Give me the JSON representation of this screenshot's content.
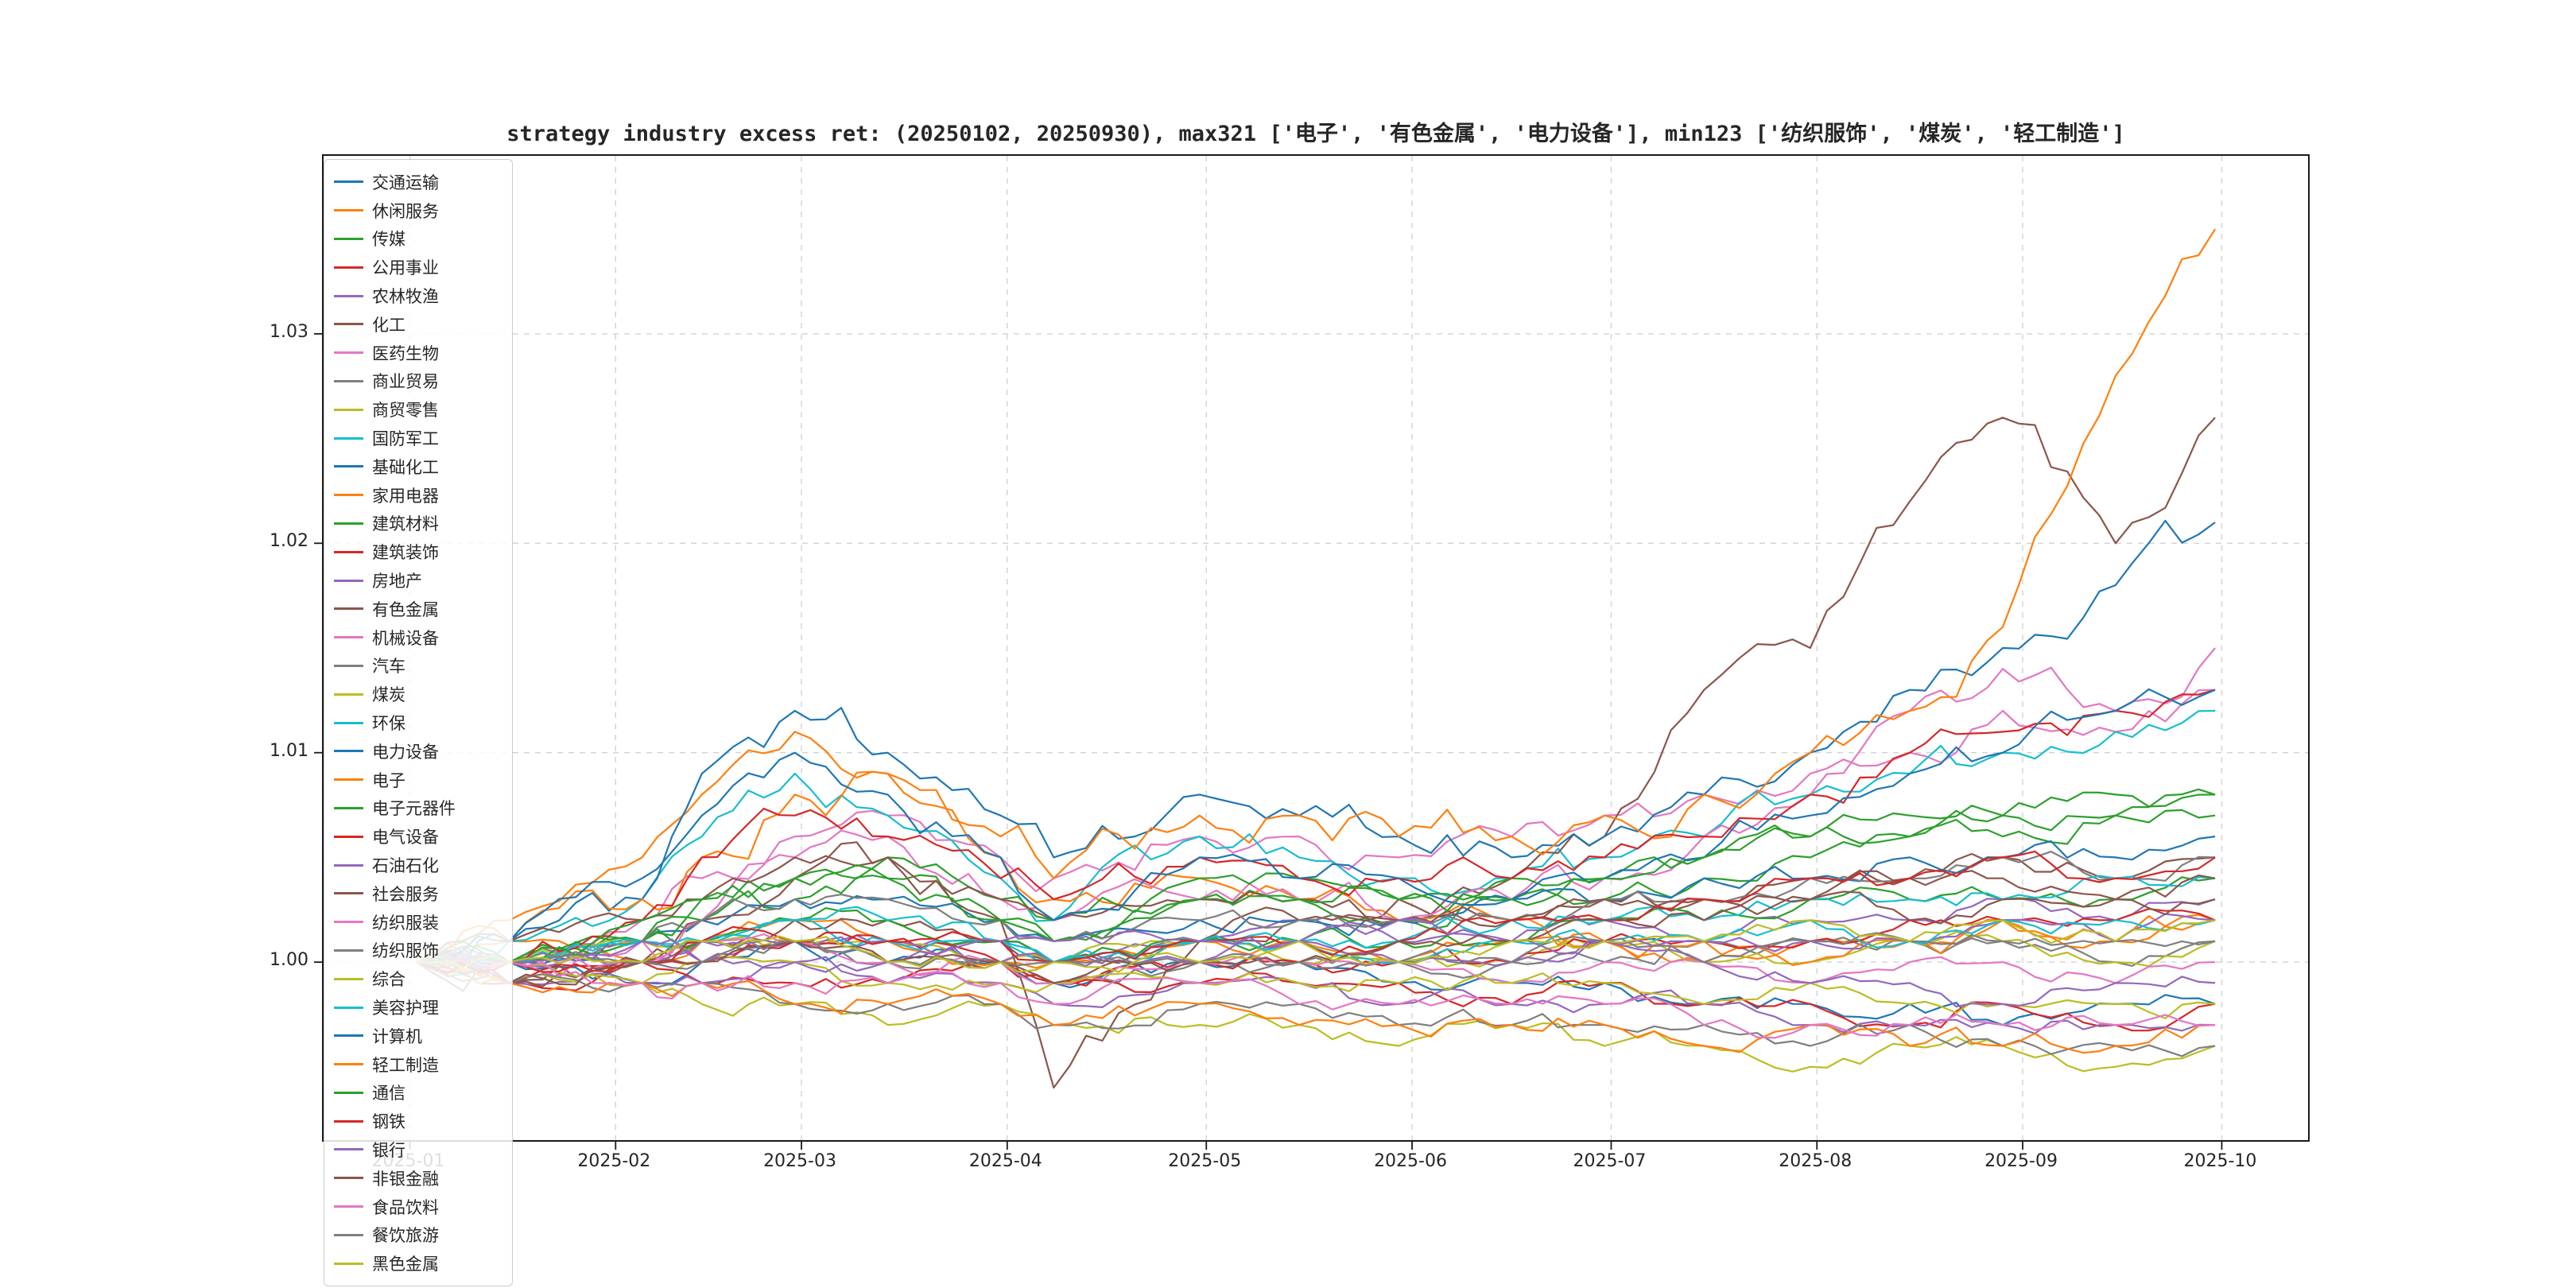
{
  "title": "strategy industry excess ret: (20250102, 20250930), max321 ['电子', '有色金属', '电力设备'], min123 ['纺织服饰', '煤炭', '轻工制造']",
  "colors": {
    "spine": "#1a1a1a",
    "grid": "#d2d2d2",
    "text": "#262626",
    "legend_border": "#cccccc"
  },
  "axes": {
    "x_ticks": [
      {
        "label": "2025-01",
        "day": 0
      },
      {
        "label": "2025-02",
        "day": 31
      },
      {
        "label": "2025-03",
        "day": 59
      },
      {
        "label": "2025-04",
        "day": 90
      },
      {
        "label": "2025-05",
        "day": 120
      },
      {
        "label": "2025-06",
        "day": 151
      },
      {
        "label": "2025-07",
        "day": 181
      },
      {
        "label": "2025-08",
        "day": 212
      },
      {
        "label": "2025-09",
        "day": 243
      },
      {
        "label": "2025-10",
        "day": 273
      }
    ],
    "y_ticks": [
      {
        "label": "1.00",
        "value": 1.0
      },
      {
        "label": "1.01",
        "value": 1.01
      },
      {
        "label": "1.02",
        "value": 1.02
      },
      {
        "label": "1.03",
        "value": 1.03
      }
    ],
    "xlim_days": [
      -13,
      286
    ],
    "ylim": [
      0.9915,
      1.0385
    ],
    "grid": "dashed"
  },
  "chart_data": {
    "type": "line",
    "title": "strategy industry excess ret: (20250102, 20250930), max321 ['电子', '有色金属', '电力设备'], min123 ['纺织服饰', '煤炭', '轻工制造']",
    "xlabel": "",
    "ylabel": "",
    "legend_position": "upper left",
    "x": [
      "2025-01-02",
      "2025-01-16",
      "2025-02-05",
      "2025-02-14",
      "2025-02-28",
      "2025-03-14",
      "2025-03-31",
      "2025-04-08",
      "2025-04-30",
      "2025-05-15",
      "2025-05-30",
      "2025-06-16",
      "2025-06-30",
      "2025-07-15",
      "2025-07-31",
      "2025-08-15",
      "2025-08-29",
      "2025-09-15",
      "2025-09-30"
    ],
    "series": [
      {
        "name": "交通运输",
        "color": "#1f77b4",
        "values": [
          1.0,
          1.0,
          0.999,
          1.0,
          1.001,
          1.0,
          1.0,
          0.999,
          1.0,
          1.0,
          0.999,
          0.999,
          0.999,
          0.998,
          0.998,
          0.998,
          0.997,
          0.998,
          0.998
        ]
      },
      {
        "name": "休闲服务",
        "color": "#ff7f0e",
        "values": [
          1.0,
          1.001,
          1.0,
          1.001,
          1.002,
          1.001,
          1.0,
          1.0,
          1.001,
          1.001,
          1.0,
          1.001,
          1.001,
          1.0,
          1.001,
          1.001,
          1.002,
          1.001,
          1.002
        ]
      },
      {
        "name": "传媒",
        "color": "#2ca02c",
        "values": [
          1.0,
          1.0,
          1.001,
          1.002,
          1.003,
          1.004,
          1.002,
          1.001,
          1.003,
          1.003,
          1.002,
          1.003,
          1.003,
          1.004,
          1.005,
          1.006,
          1.006,
          1.007,
          1.007
        ]
      },
      {
        "name": "公用事业",
        "color": "#d62728",
        "values": [
          1.0,
          0.999,
          1.0,
          0.999,
          0.999,
          0.999,
          1.0,
          0.999,
          0.999,
          0.999,
          0.999,
          0.998,
          0.999,
          0.998,
          0.998,
          0.997,
          0.998,
          0.997,
          0.998
        ]
      },
      {
        "name": "农林牧渔",
        "color": "#9467bd",
        "values": [
          1.0,
          1.0,
          1.001,
          1.0,
          1.001,
          1.001,
          1.001,
          1.0,
          1.001,
          1.002,
          1.001,
          1.001,
          1.002,
          1.001,
          1.002,
          1.002,
          1.003,
          1.002,
          1.003
        ]
      },
      {
        "name": "化工",
        "color": "#8c564b",
        "values": [
          1.0,
          0.999,
          1.0,
          1.001,
          1.002,
          1.002,
          1.001,
          1.0,
          1.001,
          1.002,
          1.002,
          1.002,
          1.003,
          1.003,
          1.004,
          1.004,
          1.005,
          1.004,
          1.005
        ]
      },
      {
        "name": "医药生物",
        "color": "#e377c2",
        "values": [
          1.0,
          1.0,
          1.002,
          1.004,
          1.006,
          1.007,
          1.005,
          1.004,
          1.006,
          1.006,
          1.005,
          1.006,
          1.007,
          1.008,
          1.009,
          1.01,
          1.012,
          1.011,
          1.013
        ]
      },
      {
        "name": "商业贸易",
        "color": "#7f7f7f",
        "values": [
          1.0,
          1.0,
          1.0,
          1.001,
          1.001,
          1.0,
          1.0,
          0.999,
          1.0,
          1.0,
          1.0,
          1.0,
          1.0,
          1.001,
          1.001,
          1.001,
          1.001,
          1.0,
          1.001
        ]
      },
      {
        "name": "商贸零售",
        "color": "#bcbd22",
        "values": [
          1.0,
          1.0,
          1.001,
          1.001,
          1.001,
          1.001,
          1.0,
          1.0,
          1.001,
          1.0,
          1.0,
          1.0,
          1.001,
          1.0,
          1.0,
          1.001,
          1.001,
          1.0,
          1.001
        ]
      },
      {
        "name": "国防军工",
        "color": "#17becf",
        "values": [
          1.0,
          1.001,
          1.003,
          1.006,
          1.009,
          1.007,
          1.004,
          1.002,
          1.006,
          1.005,
          1.004,
          1.004,
          1.005,
          1.006,
          1.008,
          1.009,
          1.01,
          1.011,
          1.012
        ]
      },
      {
        "name": "基础化工",
        "color": "#1f77b4",
        "values": [
          1.0,
          1.0,
          1.001,
          1.002,
          1.003,
          1.003,
          1.002,
          1.001,
          1.002,
          1.002,
          1.002,
          1.003,
          1.003,
          1.004,
          1.004,
          1.005,
          1.005,
          1.005,
          1.006
        ]
      },
      {
        "name": "家用电器",
        "color": "#ff7f0e",
        "values": [
          1.0,
          1.002,
          1.005,
          1.008,
          1.011,
          1.009,
          1.005,
          1.003,
          1.004,
          1.003,
          1.002,
          1.002,
          1.001,
          1.001,
          1.0,
          1.001,
          1.002,
          1.001,
          1.002
        ]
      },
      {
        "name": "建筑材料",
        "color": "#2ca02c",
        "values": [
          1.0,
          1.0,
          1.001,
          1.001,
          1.002,
          1.002,
          1.001,
          1.0,
          1.001,
          1.001,
          1.001,
          1.001,
          1.002,
          1.002,
          1.003,
          1.003,
          1.003,
          1.003,
          1.004
        ]
      },
      {
        "name": "建筑装饰",
        "color": "#d62728",
        "values": [
          1.0,
          0.999,
          1.0,
          1.0,
          1.001,
          1.001,
          1.0,
          0.999,
          1.0,
          1.0,
          1.0,
          1.0,
          1.001,
          1.001,
          1.001,
          1.002,
          1.002,
          1.002,
          1.002
        ]
      },
      {
        "name": "房地产",
        "color": "#9467bd",
        "values": [
          1.0,
          0.999,
          0.999,
          0.999,
          1.0,
          0.999,
          0.999,
          0.998,
          0.999,
          0.999,
          0.998,
          0.998,
          0.998,
          0.998,
          0.997,
          0.997,
          0.997,
          0.997,
          0.997
        ]
      },
      {
        "name": "有色金属",
        "color": "#8c564b",
        "values": [
          1.0,
          0.999,
          1.0,
          1.002,
          1.004,
          1.005,
          1.002,
          0.994,
          1.001,
          1.002,
          1.003,
          1.004,
          1.006,
          1.013,
          1.015,
          1.022,
          1.026,
          1.02,
          1.026
        ]
      },
      {
        "name": "机械设备",
        "color": "#e377c2",
        "values": [
          1.0,
          1.0,
          1.001,
          1.002,
          1.005,
          1.006,
          1.003,
          1.002,
          1.003,
          1.003,
          1.002,
          1.003,
          1.004,
          1.006,
          1.008,
          1.012,
          1.014,
          1.012,
          1.015
        ]
      },
      {
        "name": "汽车",
        "color": "#7f7f7f",
        "values": [
          1.0,
          1.0,
          1.001,
          1.002,
          1.003,
          1.003,
          1.002,
          1.001,
          1.002,
          1.002,
          1.002,
          1.002,
          1.003,
          1.003,
          1.004,
          1.004,
          1.005,
          1.004,
          1.005
        ]
      },
      {
        "name": "煤炭",
        "color": "#bcbd22",
        "values": [
          1.0,
          0.999,
          0.999,
          0.998,
          0.998,
          0.997,
          0.998,
          0.997,
          0.997,
          0.997,
          0.996,
          0.997,
          0.996,
          0.996,
          0.995,
          0.996,
          0.996,
          0.995,
          0.996
        ]
      },
      {
        "name": "环保",
        "color": "#17becf",
        "values": [
          1.0,
          1.0,
          1.001,
          1.001,
          1.002,
          1.002,
          1.001,
          1.0,
          1.001,
          1.001,
          1.001,
          1.002,
          1.002,
          1.002,
          1.003,
          1.003,
          1.003,
          1.004,
          1.004
        ]
      },
      {
        "name": "电力设备",
        "color": "#1f77b4",
        "values": [
          1.0,
          1.001,
          1.003,
          1.009,
          1.012,
          1.01,
          1.007,
          1.005,
          1.008,
          1.007,
          1.006,
          1.005,
          1.006,
          1.008,
          1.01,
          1.013,
          1.015,
          1.018,
          1.021
        ]
      },
      {
        "name": "电子",
        "color": "#ff7f0e",
        "values": [
          1.0,
          1.001,
          1.003,
          1.005,
          1.008,
          1.009,
          1.006,
          1.004,
          1.007,
          1.007,
          1.006,
          1.006,
          1.007,
          1.008,
          1.01,
          1.012,
          1.016,
          1.028,
          1.035
        ]
      },
      {
        "name": "电子元器件",
        "color": "#2ca02c",
        "values": [
          1.0,
          1.0,
          1.001,
          1.003,
          1.004,
          1.005,
          1.003,
          1.002,
          1.004,
          1.004,
          1.003,
          1.004,
          1.004,
          1.005,
          1.006,
          1.006,
          1.007,
          1.007,
          1.008
        ]
      },
      {
        "name": "电气设备",
        "color": "#d62728",
        "values": [
          1.0,
          1.0,
          1.002,
          1.005,
          1.007,
          1.006,
          1.004,
          1.003,
          1.005,
          1.004,
          1.004,
          1.004,
          1.005,
          1.006,
          1.008,
          1.01,
          1.011,
          1.012,
          1.013
        ]
      },
      {
        "name": "石油石化",
        "color": "#9467bd",
        "values": [
          1.0,
          1.0,
          1.0,
          1.001,
          1.001,
          1.001,
          1.0,
          1.0,
          1.0,
          1.001,
          1.0,
          1.0,
          1.001,
          1.001,
          1.001,
          1.001,
          1.002,
          1.001,
          1.002
        ]
      },
      {
        "name": "社会服务",
        "color": "#8c564b",
        "values": [
          1.0,
          1.001,
          1.002,
          1.003,
          1.005,
          1.005,
          1.003,
          1.002,
          1.003,
          1.003,
          1.002,
          1.002,
          1.003,
          1.003,
          1.003,
          1.004,
          1.004,
          1.003,
          1.004
        ]
      },
      {
        "name": "纺织服装",
        "color": "#e377c2",
        "values": [
          1.0,
          1.0,
          1.0,
          1.001,
          1.001,
          1.0,
          1.0,
          0.999,
          1.0,
          1.0,
          1.0,
          0.999,
          1.0,
          1.0,
          0.999,
          1.0,
          1.0,
          0.999,
          1.0
        ]
      },
      {
        "name": "纺织服饰",
        "color": "#7f7f7f",
        "values": [
          1.0,
          0.999,
          0.999,
          0.999,
          0.998,
          0.998,
          0.998,
          0.997,
          0.998,
          0.998,
          0.997,
          0.997,
          0.997,
          0.997,
          0.996,
          0.997,
          0.996,
          0.996,
          0.996
        ]
      },
      {
        "name": "综合",
        "color": "#bcbd22",
        "values": [
          1.0,
          1.0,
          0.999,
          1.0,
          1.0,
          0.999,
          0.999,
          0.999,
          0.999,
          0.999,
          0.999,
          0.999,
          0.999,
          0.998,
          0.999,
          0.998,
          0.998,
          0.998,
          0.998
        ]
      },
      {
        "name": "美容护理",
        "color": "#17becf",
        "values": [
          1.0,
          1.0,
          1.001,
          1.001,
          1.002,
          1.001,
          1.001,
          1.0,
          1.001,
          1.001,
          1.0,
          1.001,
          1.001,
          1.001,
          1.002,
          1.001,
          1.002,
          1.002,
          1.002
        ]
      },
      {
        "name": "计算机",
        "color": "#1f77b4",
        "values": [
          1.0,
          1.001,
          1.004,
          1.007,
          1.01,
          1.008,
          1.005,
          1.002,
          1.005,
          1.004,
          1.004,
          1.003,
          1.004,
          1.005,
          1.007,
          1.009,
          1.01,
          1.012,
          1.013
        ]
      },
      {
        "name": "轻工制造",
        "color": "#ff7f0e",
        "values": [
          1.0,
          0.999,
          0.999,
          0.999,
          0.998,
          0.998,
          0.998,
          0.997,
          0.998,
          0.997,
          0.997,
          0.997,
          0.997,
          0.996,
          0.997,
          0.996,
          0.996,
          0.996,
          0.997
        ]
      },
      {
        "name": "通信",
        "color": "#2ca02c",
        "values": [
          1.0,
          1.0,
          1.002,
          1.003,
          1.004,
          1.004,
          1.002,
          1.001,
          1.003,
          1.003,
          1.003,
          1.003,
          1.004,
          1.005,
          1.006,
          1.007,
          1.007,
          1.008,
          1.008
        ]
      },
      {
        "name": "钢铁",
        "color": "#d62728",
        "values": [
          1.0,
          1.0,
          1.0,
          1.001,
          1.001,
          1.001,
          1.001,
          1.0,
          1.001,
          1.001,
          1.001,
          1.002,
          1.002,
          1.003,
          1.004,
          1.004,
          1.005,
          1.004,
          1.005
        ]
      },
      {
        "name": "银行",
        "color": "#9467bd",
        "values": [
          1.0,
          1.0,
          1.001,
          1.0,
          1.0,
          1.0,
          1.001,
          1.001,
          1.001,
          1.001,
          1.002,
          1.001,
          1.001,
          1.0,
          0.999,
          0.999,
          0.998,
          0.999,
          0.999
        ]
      },
      {
        "name": "非银金融",
        "color": "#8c564b",
        "values": [
          1.0,
          0.999,
          1.0,
          1.0,
          1.001,
          1.0,
          1.0,
          0.999,
          1.0,
          1.0,
          1.001,
          1.001,
          1.002,
          1.002,
          1.003,
          1.002,
          1.003,
          1.003,
          1.003
        ]
      },
      {
        "name": "食品饮料",
        "color": "#e377c2",
        "values": [
          1.0,
          1.0,
          0.999,
          0.999,
          0.999,
          0.999,
          0.999,
          0.998,
          0.999,
          0.998,
          0.998,
          0.998,
          0.998,
          0.997,
          0.997,
          0.997,
          0.997,
          0.997,
          0.997
        ]
      },
      {
        "name": "餐饮旅游",
        "color": "#7f7f7f",
        "values": [
          1.0,
          1.0,
          1.0,
          1.0,
          1.001,
          1.0,
          1.0,
          1.0,
          1.0,
          1.0,
          1.0,
          1.0,
          1.001,
          1.0,
          1.001,
          1.001,
          1.001,
          1.001,
          1.001
        ]
      },
      {
        "name": "黑色金属",
        "color": "#bcbd22",
        "values": [
          1.0,
          1.0,
          1.0,
          1.001,
          1.001,
          1.0,
          1.0,
          1.0,
          1.0,
          1.001,
          1.0,
          1.001,
          1.001,
          1.001,
          1.002,
          1.001,
          1.002,
          1.001,
          1.002
        ]
      }
    ]
  }
}
